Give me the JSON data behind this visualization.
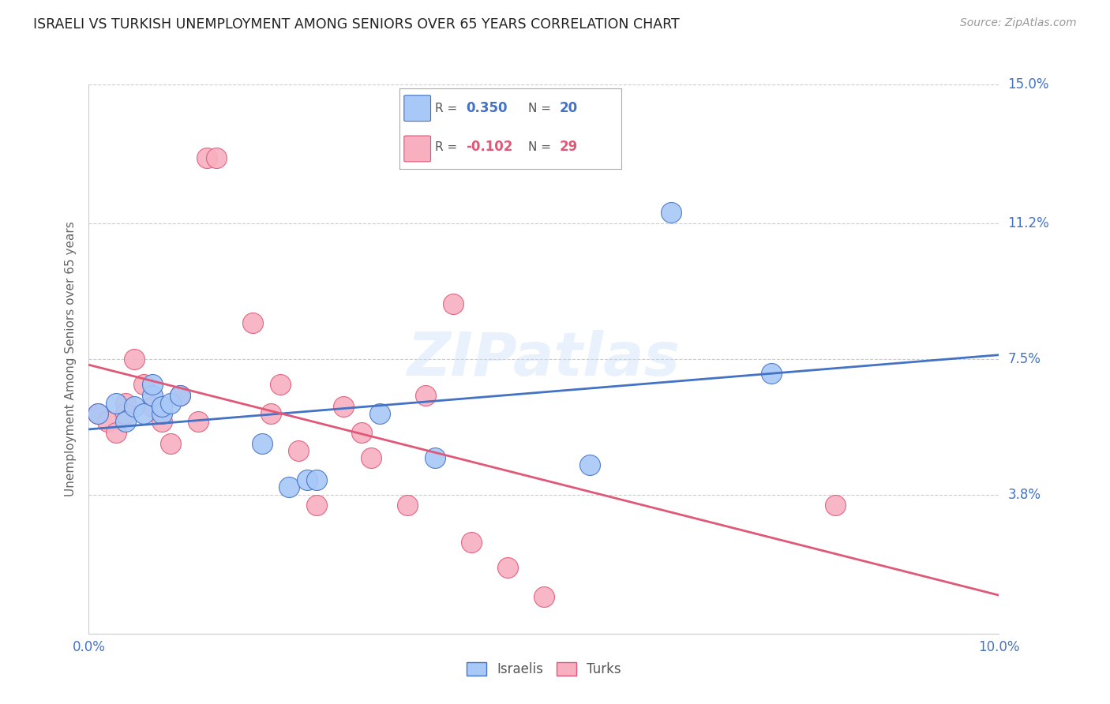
{
  "title": "ISRAELI VS TURKISH UNEMPLOYMENT AMONG SENIORS OVER 65 YEARS CORRELATION CHART",
  "source": "Source: ZipAtlas.com",
  "ylabel": "Unemployment Among Seniors over 65 years",
  "xlim": [
    0.0,
    0.1
  ],
  "ylim": [
    0.0,
    0.15
  ],
  "xticks": [
    0.0,
    0.02,
    0.04,
    0.06,
    0.08,
    0.1
  ],
  "xticklabels": [
    "0.0%",
    "",
    "",
    "",
    "",
    "10.0%"
  ],
  "yticks": [
    0.0,
    0.038,
    0.075,
    0.112,
    0.15
  ],
  "yticklabels": [
    "",
    "3.8%",
    "7.5%",
    "11.2%",
    "15.0%"
  ],
  "israeli_R": "0.350",
  "israeli_N": "20",
  "turkish_R": "-0.102",
  "turkish_N": "29",
  "israeli_color": "#a8c8f8",
  "turkish_color": "#f8b0c0",
  "israeli_line_color": "#4472c4",
  "turkish_line_color": "#e05878",
  "watermark": "ZIPatlas",
  "israeli_x": [
    0.001,
    0.003,
    0.004,
    0.005,
    0.006,
    0.007,
    0.007,
    0.008,
    0.008,
    0.009,
    0.01,
    0.019,
    0.022,
    0.024,
    0.025,
    0.032,
    0.038,
    0.055,
    0.064,
    0.075
  ],
  "israeli_y": [
    0.06,
    0.063,
    0.058,
    0.062,
    0.06,
    0.065,
    0.068,
    0.06,
    0.062,
    0.063,
    0.065,
    0.052,
    0.04,
    0.042,
    0.042,
    0.06,
    0.048,
    0.046,
    0.115,
    0.071
  ],
  "turkish_x": [
    0.001,
    0.002,
    0.003,
    0.004,
    0.004,
    0.005,
    0.006,
    0.007,
    0.008,
    0.009,
    0.01,
    0.012,
    0.013,
    0.014,
    0.018,
    0.02,
    0.021,
    0.023,
    0.025,
    0.028,
    0.03,
    0.031,
    0.035,
    0.037,
    0.04,
    0.042,
    0.046,
    0.05,
    0.082
  ],
  "turkish_y": [
    0.06,
    0.058,
    0.055,
    0.063,
    0.06,
    0.075,
    0.068,
    0.062,
    0.058,
    0.052,
    0.065,
    0.058,
    0.13,
    0.13,
    0.085,
    0.06,
    0.068,
    0.05,
    0.035,
    0.062,
    0.055,
    0.048,
    0.035,
    0.065,
    0.09,
    0.025,
    0.018,
    0.01,
    0.035
  ]
}
